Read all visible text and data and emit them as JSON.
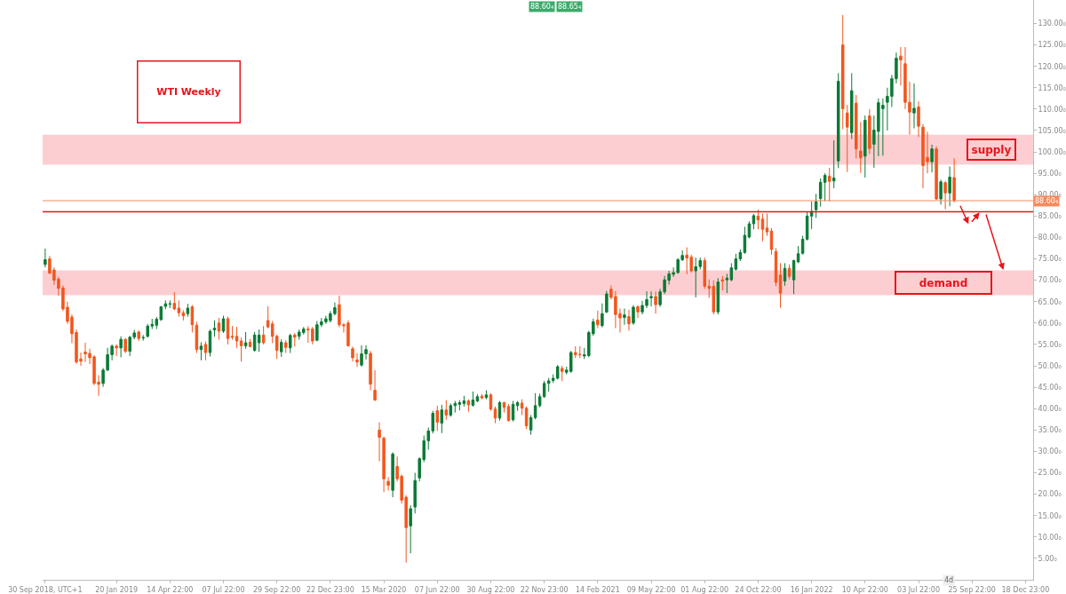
{
  "chart_data": {
    "type": "candlestick",
    "title": "WTI Weekly",
    "x": [
      "2018-09-30",
      "2018-10-07",
      "2018-10-14",
      "2018-10-21",
      "2018-10-28",
      "2018-11-04",
      "2018-11-11",
      "2018-11-18",
      "2018-11-25",
      "2018-12-02",
      "2018-12-09",
      "2018-12-16",
      "2018-12-23",
      "2018-12-30",
      "2019-01-06",
      "2019-01-13",
      "2019-01-20",
      "2019-01-27",
      "2019-02-03",
      "2019-02-10",
      "2019-02-17",
      "2019-02-24",
      "2019-03-03",
      "2019-03-10",
      "2019-03-17",
      "2019-03-24",
      "2019-03-31",
      "2019-04-07",
      "2019-04-14",
      "2019-04-21",
      "2019-04-28",
      "2019-05-05",
      "2019-05-12",
      "2019-05-19",
      "2019-05-26",
      "2019-06-02",
      "2019-06-09",
      "2019-06-16",
      "2019-06-23",
      "2019-06-30",
      "2019-07-07",
      "2019-07-14",
      "2019-07-21",
      "2019-07-28",
      "2019-08-04",
      "2019-08-11",
      "2019-08-18",
      "2019-08-25",
      "2019-09-01",
      "2019-09-08",
      "2019-09-15",
      "2019-09-22",
      "2019-09-29",
      "2019-10-06",
      "2019-10-13",
      "2019-10-20",
      "2019-10-27",
      "2019-11-03",
      "2019-11-10",
      "2019-11-17",
      "2019-11-24",
      "2019-12-01",
      "2019-12-08",
      "2019-12-15",
      "2019-12-22",
      "2019-12-29",
      "2020-01-05",
      "2020-01-12",
      "2020-01-19",
      "2020-01-26",
      "2020-02-02",
      "2020-02-09",
      "2020-02-16",
      "2020-02-23",
      "2020-03-01",
      "2020-03-08",
      "2020-03-15",
      "2020-03-22",
      "2020-03-29",
      "2020-04-05",
      "2020-04-12",
      "2020-04-19",
      "2020-04-26",
      "2020-05-03",
      "2020-05-10",
      "2020-05-17",
      "2020-05-24",
      "2020-05-31",
      "2020-06-07",
      "2020-06-14",
      "2020-06-21",
      "2020-06-28",
      "2020-07-05",
      "2020-07-12",
      "2020-07-19",
      "2020-07-26",
      "2020-08-02",
      "2020-08-09",
      "2020-08-16",
      "2020-08-23",
      "2020-08-30",
      "2020-09-06",
      "2020-09-13",
      "2020-09-20",
      "2020-09-27",
      "2020-10-04",
      "2020-10-11",
      "2020-10-18",
      "2020-10-25",
      "2020-11-01",
      "2020-11-08",
      "2020-11-15",
      "2020-11-22",
      "2020-11-29",
      "2020-12-06",
      "2020-12-13",
      "2020-12-20",
      "2020-12-27",
      "2021-01-03",
      "2021-01-10",
      "2021-01-17",
      "2021-01-24",
      "2021-01-31",
      "2021-02-07",
      "2021-02-14",
      "2021-02-21",
      "2021-02-28",
      "2021-03-07",
      "2021-03-14",
      "2021-03-21",
      "2021-03-28",
      "2021-04-04",
      "2021-04-11",
      "2021-04-18",
      "2021-04-25",
      "2021-05-02",
      "2021-05-09",
      "2021-05-16",
      "2021-05-23",
      "2021-05-30",
      "2021-06-06",
      "2021-06-13",
      "2021-06-20",
      "2021-06-27",
      "2021-07-04",
      "2021-07-11",
      "2021-07-18",
      "2021-07-25",
      "2021-08-01",
      "2021-08-08",
      "2021-08-15",
      "2021-08-22",
      "2021-08-29",
      "2021-09-05",
      "2021-09-12",
      "2021-09-19",
      "2021-09-26",
      "2021-10-03",
      "2021-10-10",
      "2021-10-17",
      "2021-10-24",
      "2021-10-31",
      "2021-11-07",
      "2021-11-14",
      "2021-11-21",
      "2021-11-28",
      "2021-12-05",
      "2021-12-12",
      "2021-12-19",
      "2021-12-26",
      "2022-01-02",
      "2022-01-09",
      "2022-01-16",
      "2022-01-23",
      "2022-01-30",
      "2022-02-06",
      "2022-02-13",
      "2022-02-20",
      "2022-02-27",
      "2022-03-06",
      "2022-03-13",
      "2022-03-20",
      "2022-03-27",
      "2022-04-03",
      "2022-04-10",
      "2022-04-17",
      "2022-04-24",
      "2022-05-01",
      "2022-05-08",
      "2022-05-15",
      "2022-05-22",
      "2022-05-29",
      "2022-06-05",
      "2022-06-12",
      "2022-06-19",
      "2022-06-26",
      "2022-07-03",
      "2022-07-10",
      "2022-07-17",
      "2022-07-24",
      "2022-07-31",
      "2022-08-07",
      "2022-08-14",
      "2022-08-21",
      "2022-08-28"
    ],
    "ohlc": [
      [
        73.7,
        77.4,
        73.0,
        74.8
      ],
      [
        75.0,
        75.7,
        71.4,
        71.7
      ],
      [
        72.4,
        73.0,
        68.9,
        70.0
      ],
      [
        70.3,
        70.8,
        66.4,
        68.1
      ],
      [
        68.2,
        68.8,
        62.8,
        63.3
      ],
      [
        63.7,
        65.0,
        59.8,
        60.4
      ],
      [
        61.4,
        62.0,
        55.3,
        57.5
      ],
      [
        57.8,
        58.5,
        50.5,
        50.9
      ],
      [
        51.6,
        53.1,
        50.0,
        51.1
      ],
      [
        53.2,
        55.4,
        50.9,
        52.8
      ],
      [
        52.9,
        54.0,
        50.4,
        51.9
      ],
      [
        52.1,
        52.5,
        45.5,
        45.9
      ],
      [
        46.2,
        47.8,
        43.0,
        45.7
      ],
      [
        45.9,
        49.5,
        45.1,
        49.0
      ],
      [
        49.0,
        54.2,
        48.8,
        52.6
      ],
      [
        52.6,
        55.0,
        51.3,
        54.6
      ],
      [
        54.6,
        55.0,
        52.3,
        54.2
      ],
      [
        54.2,
        56.9,
        52.0,
        56.2
      ],
      [
        56.2,
        56.5,
        53.0,
        53.4
      ],
      [
        53.4,
        57.0,
        52.3,
        56.7
      ],
      [
        56.7,
        58.4,
        56.2,
        57.7
      ],
      [
        57.9,
        58.3,
        55.8,
        56.4
      ],
      [
        56.5,
        57.2,
        55.9,
        56.6
      ],
      [
        56.9,
        59.8,
        56.6,
        59.3
      ],
      [
        59.3,
        61.0,
        58.6,
        59.7
      ],
      [
        59.5,
        61.4,
        58.6,
        60.9
      ],
      [
        60.8,
        64.0,
        60.5,
        63.8
      ],
      [
        63.9,
        65.3,
        63.2,
        64.5
      ],
      [
        64.4,
        65.3,
        63.5,
        64.5
      ],
      [
        64.6,
        67.2,
        63.0,
        63.3
      ],
      [
        63.5,
        65.3,
        61.5,
        62.4
      ],
      [
        62.4,
        63.0,
        60.6,
        61.7
      ],
      [
        62.2,
        64.5,
        61.5,
        63.5
      ],
      [
        63.8,
        64.2,
        57.8,
        59.6
      ],
      [
        59.5,
        60.3,
        53.0,
        53.8
      ],
      [
        53.8,
        55.5,
        51.3,
        54.6
      ],
      [
        55.0,
        55.7,
        51.3,
        53.1
      ],
      [
        53.1,
        58.5,
        52.2,
        58.1
      ],
      [
        58.4,
        60.6,
        56.8,
        58.8
      ],
      [
        60.0,
        61.2,
        56.1,
        58.1
      ],
      [
        58.1,
        61.7,
        57.7,
        61.0
      ],
      [
        61.0,
        61.5,
        55.0,
        56.4
      ],
      [
        56.9,
        59.3,
        56.1,
        56.7
      ],
      [
        56.9,
        59.1,
        54.2,
        55.8
      ],
      [
        55.8,
        56.6,
        51.0,
        54.7
      ],
      [
        54.7,
        57.9,
        54.0,
        55.4
      ],
      [
        55.5,
        56.3,
        54.3,
        54.5
      ],
      [
        53.6,
        57.9,
        53.3,
        57.2
      ],
      [
        55.4,
        58.5,
        53.3,
        57.2
      ],
      [
        57.2,
        59.3,
        55.0,
        55.4
      ],
      [
        60.6,
        63.9,
        58.8,
        59.1
      ],
      [
        59.8,
        60.5,
        55.3,
        56.9
      ],
      [
        56.9,
        57.3,
        51.6,
        53.6
      ],
      [
        53.3,
        56.2,
        52.1,
        55.5
      ],
      [
        55.4,
        56.0,
        53.0,
        54.3
      ],
      [
        54.2,
        57.5,
        53.0,
        57.1
      ],
      [
        57.2,
        57.7,
        54.5,
        56.7
      ],
      [
        56.9,
        58.5,
        56.1,
        57.9
      ],
      [
        57.8,
        59.1,
        57.3,
        58.6
      ],
      [
        58.6,
        59.3,
        55.4,
        58.4
      ],
      [
        58.6,
        59.1,
        55.0,
        55.8
      ],
      [
        56.0,
        60.5,
        55.7,
        59.6
      ],
      [
        59.6,
        61.2,
        59.1,
        60.3
      ],
      [
        60.3,
        61.7,
        59.8,
        61.0
      ],
      [
        60.6,
        62.8,
        60.1,
        62.2
      ],
      [
        62.2,
        64.8,
        61.8,
        63.6
      ],
      [
        64.3,
        66.4,
        59.0,
        59.6
      ],
      [
        59.6,
        60.0,
        57.8,
        59.4
      ],
      [
        60.0,
        60.6,
        54.5,
        54.7
      ],
      [
        54.0,
        54.5,
        51.0,
        51.9
      ],
      [
        51.4,
        53.0,
        49.8,
        50.9
      ],
      [
        50.2,
        54.8,
        49.8,
        52.8
      ],
      [
        52.8,
        54.8,
        51.5,
        53.8
      ],
      [
        52.9,
        53.5,
        44.3,
        45.7
      ],
      [
        44.3,
        49.0,
        41.8,
        42.0
      ],
      [
        35.0,
        36.8,
        27.7,
        33.3
      ],
      [
        33.1,
        33.5,
        20.5,
        23.6
      ],
      [
        23.0,
        24.0,
        20.9,
        22.1
      ],
      [
        20.9,
        29.8,
        19.3,
        29.4
      ],
      [
        26.5,
        28.8,
        23.0,
        23.6
      ],
      [
        24.2,
        24.6,
        17.8,
        18.6
      ],
      [
        19.3,
        19.8,
        4.0,
        12.2
      ],
      [
        12.6,
        17.4,
        6.2,
        16.6
      ],
      [
        17.0,
        25.0,
        15.5,
        23.2
      ],
      [
        23.8,
        28.6,
        23.0,
        28.3
      ],
      [
        28.1,
        33.7,
        27.5,
        32.5
      ],
      [
        32.5,
        35.6,
        30.4,
        34.8
      ],
      [
        34.8,
        39.5,
        34.2,
        38.9
      ],
      [
        39.5,
        40.7,
        34.8,
        36.8
      ],
      [
        36.6,
        40.9,
        34.3,
        39.7
      ],
      [
        39.7,
        42.0,
        37.4,
        38.5
      ],
      [
        38.5,
        41.2,
        38.1,
        40.7
      ],
      [
        40.7,
        41.8,
        39.1,
        41.2
      ],
      [
        41.0,
        42.0,
        39.6,
        41.4
      ],
      [
        41.2,
        43.0,
        40.5,
        41.8
      ],
      [
        41.8,
        42.2,
        39.3,
        40.9
      ],
      [
        40.8,
        44.0,
        40.5,
        42.0
      ],
      [
        41.8,
        43.4,
        41.5,
        42.8
      ],
      [
        42.9,
        43.4,
        42.2,
        42.5
      ],
      [
        42.6,
        44.3,
        42.2,
        43.2
      ],
      [
        43.2,
        43.6,
        39.5,
        39.9
      ],
      [
        39.9,
        40.5,
        36.6,
        37.8
      ],
      [
        37.8,
        41.8,
        37.2,
        41.4
      ],
      [
        41.4,
        41.6,
        39.1,
        40.3
      ],
      [
        40.5,
        41.1,
        37.0,
        37.2
      ],
      [
        37.4,
        41.8,
        37.0,
        41.0
      ],
      [
        40.7,
        41.8,
        39.5,
        41.4
      ],
      [
        41.3,
        42.2,
        38.5,
        40.1
      ],
      [
        40.1,
        40.5,
        35.2,
        36.0
      ],
      [
        35.0,
        38.5,
        33.9,
        37.9
      ],
      [
        37.9,
        43.6,
        37.5,
        40.7
      ],
      [
        40.7,
        43.5,
        40.3,
        42.8
      ],
      [
        42.8,
        46.5,
        42.5,
        45.9
      ],
      [
        45.9,
        47.2,
        44.0,
        46.5
      ],
      [
        46.6,
        48.0,
        46.0,
        47.1
      ],
      [
        47.1,
        50.2,
        46.8,
        49.8
      ],
      [
        49.4,
        50.0,
        46.4,
        48.7
      ],
      [
        48.5,
        49.8,
        48.0,
        49.0
      ],
      [
        48.7,
        53.5,
        48.4,
        53.1
      ],
      [
        53.1,
        54.6,
        51.8,
        52.6
      ],
      [
        52.7,
        54.6,
        51.8,
        52.6
      ],
      [
        52.3,
        54.2,
        51.6,
        52.6
      ],
      [
        52.4,
        58.2,
        52.0,
        57.8
      ],
      [
        57.5,
        61.0,
        57.0,
        60.3
      ],
      [
        60.7,
        62.9,
        58.8,
        59.6
      ],
      [
        59.4,
        64.6,
        59.0,
        62.2
      ],
      [
        62.6,
        67.5,
        62.3,
        66.8
      ],
      [
        67.9,
        68.8,
        65.5,
        66.0
      ],
      [
        66.2,
        67.5,
        58.8,
        62.0
      ],
      [
        62.2,
        63.4,
        57.8,
        61.2
      ],
      [
        61.3,
        63.4,
        59.6,
        61.9
      ],
      [
        61.5,
        63.1,
        58.2,
        59.8
      ],
      [
        60.0,
        64.2,
        59.6,
        63.7
      ],
      [
        63.8,
        64.2,
        61.2,
        62.6
      ],
      [
        62.6,
        65.2,
        62.0,
        64.1
      ],
      [
        64.1,
        67.4,
        63.5,
        65.5
      ],
      [
        65.9,
        67.4,
        63.9,
        66.2
      ],
      [
        66.2,
        67.4,
        62.2,
        64.3
      ],
      [
        64.3,
        68.0,
        63.8,
        67.3
      ],
      [
        67.3,
        71.0,
        66.8,
        70.1
      ],
      [
        70.0,
        72.2,
        69.0,
        71.5
      ],
      [
        71.4,
        73.0,
        70.8,
        71.8
      ],
      [
        71.8,
        75.2,
        71.5,
        74.8
      ],
      [
        74.8,
        77.0,
        74.5,
        75.8
      ],
      [
        75.9,
        77.7,
        71.4,
        75.2
      ],
      [
        75.4,
        76.0,
        71.8,
        72.2
      ],
      [
        72.2,
        75.3,
        66.0,
        73.2
      ],
      [
        73.2,
        75.3,
        72.5,
        74.6
      ],
      [
        74.6,
        75.3,
        68.0,
        68.6
      ],
      [
        68.6,
        70.2,
        65.9,
        68.1
      ],
      [
        68.6,
        70.0,
        62.0,
        62.6
      ],
      [
        62.6,
        70.5,
        62.0,
        69.6
      ],
      [
        70.1,
        71.0,
        67.6,
        69.8
      ],
      [
        70.1,
        71.5,
        67.0,
        70.5
      ],
      [
        70.1,
        74.0,
        69.8,
        72.9
      ],
      [
        72.6,
        76.2,
        72.3,
        75.0
      ],
      [
        75.0,
        77.2,
        74.5,
        76.5
      ],
      [
        76.5,
        82.5,
        76.2,
        80.5
      ],
      [
        80.1,
        83.8,
        79.8,
        83.2
      ],
      [
        83.2,
        85.5,
        81.9,
        85.1
      ],
      [
        85.0,
        86.5,
        81.9,
        84.1
      ],
      [
        84.3,
        85.6,
        79.1,
        81.9
      ],
      [
        82.2,
        85.6,
        80.4,
        81.3
      ],
      [
        81.5,
        82.2,
        76.0,
        77.2
      ],
      [
        76.7,
        77.5,
        68.6,
        69.5
      ],
      [
        71.2,
        74.0,
        63.6,
        67.0
      ],
      [
        69.8,
        74.0,
        68.7,
        72.8
      ],
      [
        72.8,
        73.7,
        70.2,
        70.9
      ],
      [
        70.1,
        74.8,
        66.8,
        74.6
      ],
      [
        74.3,
        78.0,
        74.0,
        76.2
      ],
      [
        76.3,
        80.4,
        76.0,
        79.6
      ],
      [
        79.6,
        86.0,
        79.3,
        85.0
      ],
      [
        85.0,
        88.4,
        82.0,
        86.1
      ],
      [
        86.5,
        90.2,
        84.6,
        88.4
      ],
      [
        89.1,
        93.8,
        87.2,
        92.9
      ],
      [
        92.9,
        95.0,
        88.5,
        94.5
      ],
      [
        94.3,
        96.3,
        88.4,
        93.1
      ],
      [
        93.2,
        102.7,
        91.5,
        93.9
      ],
      [
        97.9,
        118.4,
        96.2,
        116.5
      ],
      [
        125.0,
        132.0,
        105.3,
        110.1
      ],
      [
        109.1,
        111.0,
        95.3,
        105.8
      ],
      [
        104.5,
        118.4,
        103.0,
        114.3
      ],
      [
        111.4,
        113.3,
        98.5,
        100.7
      ],
      [
        100.2,
        107.0,
        95.1,
        98.6
      ],
      [
        99.0,
        108.5,
        94.0,
        107.4
      ],
      [
        108.4,
        110.0,
        99.5,
        100.8
      ],
      [
        101.8,
        108.5,
        96.3,
        105.1
      ],
      [
        104.8,
        112.5,
        99.0,
        111.5
      ],
      [
        110.1,
        112.5,
        99.1,
        110.9
      ],
      [
        111.6,
        115.0,
        105.0,
        113.0
      ],
      [
        113.0,
        118.0,
        110.5,
        117.1
      ],
      [
        117.1,
        123.2,
        116.0,
        121.9
      ],
      [
        122.4,
        124.5,
        115.5,
        121.5
      ],
      [
        120.6,
        124.5,
        110.0,
        111.6
      ],
      [
        111.6,
        116.4,
        104.0,
        109.3
      ],
      [
        109.1,
        116.0,
        105.5,
        110.2
      ],
      [
        110.5,
        111.8,
        103.5,
        106.0
      ],
      [
        105.8,
        106.5,
        91.5,
        96.8
      ],
      [
        98.7,
        104.7,
        95.0,
        97.7
      ],
      [
        97.7,
        101.7,
        95.2,
        100.7
      ],
      [
        100.7,
        101.3,
        88.8,
        89.0
      ],
      [
        89.0,
        93.5,
        87.7,
        93.0
      ],
      [
        92.8,
        93.2,
        86.6,
        90.4
      ],
      [
        90.4,
        96.6,
        87.3,
        94.1
      ],
      [
        94.0,
        98.5,
        88.2,
        88.6
      ]
    ],
    "colors": [
      "#0b7a35",
      "#f2561d",
      "#f2561d",
      "#f2561d",
      "#f2561d",
      "#f2561d",
      "#f2561d",
      "#f2561d",
      "#f2561d",
      "#f2561d",
      "#f2561d",
      "#f2561d",
      "#f2561d",
      "#0b7a35",
      "#0b7a35",
      "#0b7a35",
      "#f2561d",
      "#0b7a35",
      "#f2561d",
      "#0b7a35",
      "#0b7a35",
      "#f2561d",
      "#0b7a35",
      "#0b7a35",
      "#0b7a35",
      "#0b7a35",
      "#0b7a35",
      "#0b7a35",
      "#0b7a35",
      "#f2561d",
      "#f2561d",
      "#f2561d",
      "#0b7a35",
      "#f2561d",
      "#f2561d",
      "#0b7a35",
      "#f2561d",
      "#0b7a35",
      "#0b7a35",
      "#f2561d",
      "#0b7a35",
      "#f2561d",
      "#f2561d",
      "#f2561d",
      "#f2561d",
      "#0b7a35",
      "#f2561d",
      "#0b7a35",
      "#0b7a35",
      "#f2561d",
      "#f2561d",
      "#f2561d",
      "#f2561d",
      "#0b7a35",
      "#f2561d",
      "#0b7a35",
      "#f2561d",
      "#0b7a35",
      "#0b7a35",
      "#f2561d",
      "#f2561d",
      "#0b7a35",
      "#0b7a35",
      "#0b7a35",
      "#0b7a35",
      "#0b7a35",
      "#f2561d",
      "#f2561d",
      "#f2561d",
      "#f2561d",
      "#f2561d",
      "#0b7a35",
      "#0b7a35",
      "#f2561d",
      "#f2561d",
      "#f2561d",
      "#f2561d",
      "#f2561d",
      "#0b7a35",
      "#f2561d",
      "#f2561d",
      "#f2561d",
      "#0b7a35",
      "#0b7a35",
      "#0b7a35",
      "#0b7a35",
      "#0b7a35",
      "#0b7a35",
      "#f2561d",
      "#0b7a35",
      "#f2561d",
      "#0b7a35",
      "#0b7a35",
      "#0b7a35",
      "#0b7a35",
      "#f2561d",
      "#0b7a35",
      "#0b7a35",
      "#f2561d",
      "#0b7a35",
      "#f2561d",
      "#f2561d",
      "#0b7a35",
      "#f2561d",
      "#f2561d",
      "#0b7a35",
      "#0b7a35",
      "#f2561d",
      "#f2561d",
      "#0b7a35",
      "#0b7a35",
      "#0b7a35",
      "#0b7a35",
      "#0b7a35",
      "#0b7a35",
      "#0b7a35",
      "#f2561d",
      "#0b7a35",
      "#0b7a35",
      "#f2561d",
      "#f2561d",
      "#0b7a35",
      "#0b7a35",
      "#0b7a35",
      "#f2561d",
      "#0b7a35",
      "#0b7a35",
      "#f2561d",
      "#f2561d",
      "#f2561d",
      "#0b7a35",
      "#f2561d",
      "#0b7a35",
      "#f2561d",
      "#0b7a35",
      "#0b7a35",
      "#0b7a35",
      "#f2561d",
      "#0b7a35",
      "#0b7a35",
      "#0b7a35",
      "#0b7a35",
      "#0b7a35",
      "#0b7a35",
      "#f2561d",
      "#f2561d",
      "#0b7a35",
      "#0b7a35",
      "#f2561d",
      "#f2561d",
      "#f2561d",
      "#0b7a35",
      "#f2561d",
      "#0b7a35",
      "#0b7a35",
      "#0b7a35",
      "#0b7a35",
      "#0b7a35",
      "#0b7a35",
      "#0b7a35",
      "#f2561d",
      "#f2561d",
      "#f2561d",
      "#f2561d",
      "#f2561d",
      "#f2561d",
      "#0b7a35",
      "#f2561d",
      "#0b7a35",
      "#0b7a35",
      "#0b7a35",
      "#0b7a35",
      "#0b7a35",
      "#0b7a35",
      "#0b7a35",
      "#0b7a35",
      "#f2561d",
      "#0b7a35",
      "#0b7a35",
      "#f2561d",
      "#f2561d",
      "#0b7a35",
      "#f2561d",
      "#f2561d",
      "#0b7a35",
      "#f2561d",
      "#0b7a35",
      "#0b7a35",
      "#0b7a35",
      "#0b7a35",
      "#0b7a35",
      "#0b7a35",
      "#f2561d",
      "#f2561d",
      "#f2561d",
      "#0b7a35",
      "#f2561d",
      "#f2561d",
      "#f2561d",
      "#0b7a35",
      "#f2561d",
      "#0b7a35",
      "#f2561d",
      "#0b7a35",
      "#f2561d"
    ],
    "xlim": [
      "2018-09-26",
      "2022-12-30"
    ],
    "xticks": [
      {
        "value": "2018-09-30",
        "label": "30 Sep 2018, UTC+1"
      },
      {
        "value": "2019-01-20",
        "label": "20 Jan 2019"
      },
      {
        "value": "2019-04-14",
        "label": "14 Apr 22:00"
      },
      {
        "value": "2019-07-07",
        "label": "07 Jul 22:00"
      },
      {
        "value": "2019-09-29",
        "label": "29 Sep 22:00"
      },
      {
        "value": "2019-12-22",
        "label": "22 Dec 23:00"
      },
      {
        "value": "2020-03-15",
        "label": "15 Mar 2020"
      },
      {
        "value": "2020-06-07",
        "label": "07 Jun 22:00"
      },
      {
        "value": "2020-08-30",
        "label": "30 Aug 22:00"
      },
      {
        "value": "2020-11-22",
        "label": "22 Nov 23:00"
      },
      {
        "value": "2021-02-14",
        "label": "14 Feb 2021"
      },
      {
        "value": "2021-05-09",
        "label": "09 May 22:00"
      },
      {
        "value": "2021-08-01",
        "label": "01 Aug 22:00"
      },
      {
        "value": "2021-10-24",
        "label": "24 Oct 22:00"
      },
      {
        "value": "2022-01-16",
        "label": "16 Jan 2022"
      },
      {
        "value": "2022-04-10",
        "label": "10 Apr 22:00"
      },
      {
        "value": "2022-07-03",
        "label": "03 Jul 22:00"
      },
      {
        "value": "2022-09-25",
        "label": "25 Sep 22:00"
      },
      {
        "value": "2022-12-18",
        "label": "18 Dec 23:00"
      }
    ],
    "ylim": [
      0,
      135.5
    ],
    "yticks": [
      {
        "value": 5,
        "label": "5.00₀"
      },
      {
        "value": 10,
        "label": "10.00₀"
      },
      {
        "value": 15,
        "label": "15.00₀"
      },
      {
        "value": 20,
        "label": "20.00₀"
      },
      {
        "value": 25,
        "label": "25.00₀"
      },
      {
        "value": 30,
        "label": "30.00₀"
      },
      {
        "value": 35,
        "label": "35.00₀"
      },
      {
        "value": 40,
        "label": "40.00₀"
      },
      {
        "value": 45,
        "label": "45.00₀"
      },
      {
        "value": 50,
        "label": "50.00₀"
      },
      {
        "value": 55,
        "label": "55.00₀"
      },
      {
        "value": 60,
        "label": "60.00₀"
      },
      {
        "value": 65,
        "label": "65.00₀"
      },
      {
        "value": 70,
        "label": "70.00₀"
      },
      {
        "value": 75,
        "label": "75.00₀"
      },
      {
        "value": 80,
        "label": "80.00₀"
      },
      {
        "value": 85,
        "label": "85.00₀"
      },
      {
        "value": 90,
        "label": "90.00₀"
      },
      {
        "value": 95,
        "label": "95.00₀"
      },
      {
        "value": 100,
        "label": "100.00₀"
      },
      {
        "value": 105,
        "label": "105.00₀"
      },
      {
        "value": 110,
        "label": "110.00₀"
      },
      {
        "value": 115,
        "label": "115.00₀"
      },
      {
        "value": 120,
        "label": "120.00₀"
      },
      {
        "value": 125,
        "label": "125.00₀"
      },
      {
        "value": 130,
        "label": "130.00₀"
      }
    ],
    "ref_lines": [
      {
        "axis": "y",
        "value": 88.604,
        "label": "88.60₄",
        "color": "#f58a5c"
      },
      {
        "axis": "y",
        "value": 86,
        "color": "#e8141b"
      }
    ],
    "bands": [
      {
        "axis": "y",
        "from": 97,
        "to": 104,
        "label": "supply",
        "color": "#fcc5ca"
      },
      {
        "axis": "y",
        "from": 66.5,
        "to": 72.3,
        "label": "demand",
        "color": "#fcc5ca"
      }
    ],
    "annotations": [
      "88.60₄",
      "88.65₄",
      "4d"
    ],
    "grid": false
  }
}
